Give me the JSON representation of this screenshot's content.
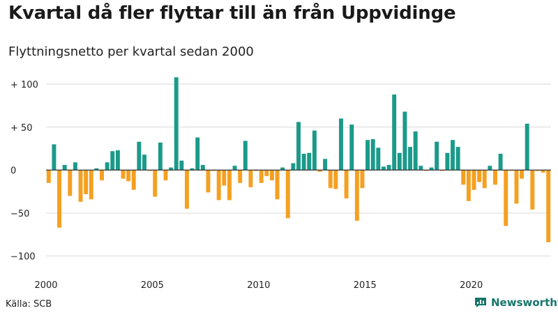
{
  "header": {
    "title": "Kvartal då fler flyttar till än från Uppvidinge",
    "subtitle": "Flyttningsnetto per kvartal sedan 2000"
  },
  "footer": {
    "source": "Källa: SCB",
    "brand": "Newsworthy"
  },
  "colors": {
    "positive": "#1b9a8a",
    "negative": "#f5a021",
    "grid": "#d9d9d9",
    "axis": "#333333",
    "brand": "#15766a"
  },
  "chart_data": {
    "type": "bar",
    "xlabel": "",
    "ylabel": "",
    "ylim": [
      -100,
      100
    ],
    "y_ticks": [
      {
        "value": 100,
        "label": "+ 100"
      },
      {
        "value": 50,
        "label": "+  50"
      },
      {
        "value": 0,
        "label": "0"
      },
      {
        "value": -50,
        "label": "−50"
      },
      {
        "value": -100,
        "label": "−100"
      }
    ],
    "x_ticks": [
      "2000",
      "2005",
      "2010",
      "2015",
      "2020"
    ],
    "start_year": 2000,
    "values": [
      -15,
      30,
      -67,
      6,
      -30,
      9,
      -37,
      -28,
      -34,
      2,
      -12,
      9,
      22,
      23,
      -10,
      -13,
      -23,
      33,
      18,
      -1,
      -31,
      32,
      -12,
      3,
      108,
      11,
      -45,
      2,
      38,
      6,
      -26,
      -1,
      -35,
      -18,
      -35,
      5,
      -15,
      34,
      -20,
      -1,
      -15,
      -7,
      -12,
      -34,
      3,
      -56,
      8,
      56,
      19,
      20,
      46,
      -2,
      13,
      -21,
      -22,
      60,
      -33,
      53,
      -59,
      -21,
      35,
      36,
      26,
      4,
      6,
      88,
      20,
      68,
      27,
      45,
      5,
      -1,
      3,
      33,
      -1,
      20,
      35,
      27,
      -17,
      -36,
      -23,
      -14,
      -21,
      5,
      -17,
      19,
      -65,
      -1,
      -39,
      -10,
      54,
      -46,
      -1,
      -3,
      -84
    ]
  }
}
